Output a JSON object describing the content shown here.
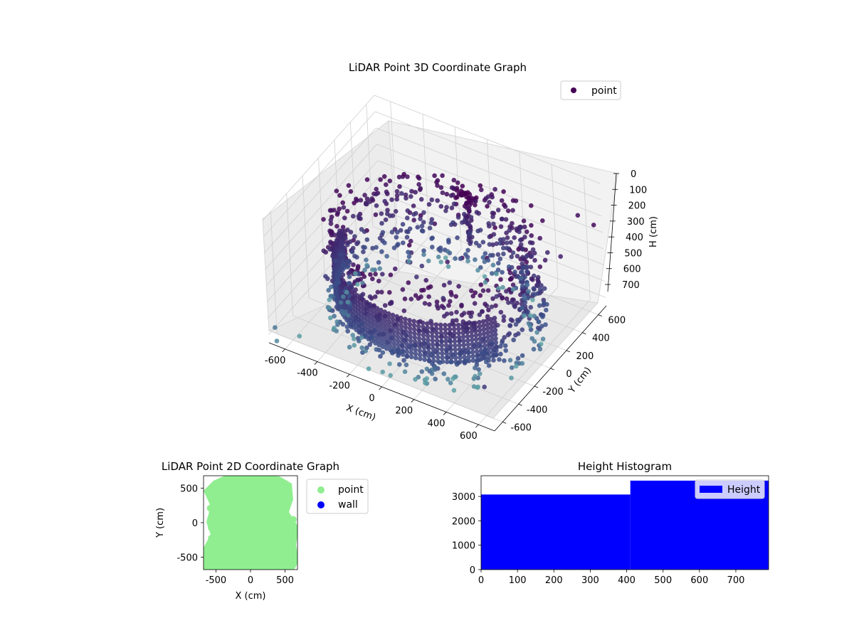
{
  "figure": {
    "background": "#ffffff"
  },
  "chart_data": [
    {
      "type": "scatter",
      "title": "LiDAR Point 3D Coordinate Graph",
      "xlabel": "X (cm)",
      "ylabel": "Y (cm)",
      "zlabel": "H (cm)",
      "xlim": [
        -700,
        700
      ],
      "ylim": [
        -700,
        700
      ],
      "zlim": [
        750,
        0
      ],
      "x_ticks": [
        -600,
        -400,
        -200,
        0,
        200,
        400,
        600
      ],
      "y_ticks": [
        -600,
        -400,
        -200,
        0,
        200,
        400,
        600
      ],
      "z_ticks": [
        0,
        100,
        200,
        300,
        400,
        500,
        600,
        700
      ],
      "grid": true,
      "legend": {
        "position": "top-right",
        "entries": [
          {
            "label": "point",
            "color": "#440154"
          }
        ]
      },
      "colormap": "viridis",
      "colors": {
        "low": "#440154",
        "mid": "#3b528b",
        "high": "#5ea4a6"
      },
      "description_of_data": "dense circular ring of wall points (radius ~550 cm) spanning heights ~150-750 cm, plus a vertical column near x≈0,y≈300 and scattered ceiling points"
    },
    {
      "type": "scatter",
      "title": "LiDAR Point 2D Coordinate Graph",
      "xlabel": "X (cm)",
      "ylabel": "Y (cm)",
      "xlim": [
        -680,
        680
      ],
      "ylim": [
        -680,
        680
      ],
      "x_ticks": [
        -500,
        0,
        500
      ],
      "y_ticks": [
        -500,
        0,
        500
      ],
      "legend": {
        "position": "right-outside",
        "entries": [
          {
            "label": "point",
            "color": "#90ee90"
          },
          {
            "label": "wall",
            "color": "#0000ff"
          }
        ]
      }
    },
    {
      "type": "bar",
      "title": "Height Histogram",
      "xlabel": "",
      "ylabel": "",
      "bins": [
        {
          "from": 0,
          "to": 410,
          "count": 3080
        },
        {
          "from": 410,
          "to": 790,
          "count": 3650
        }
      ],
      "xlim": [
        0,
        790
      ],
      "ylim": [
        0,
        3850
      ],
      "x_ticks": [
        0,
        100,
        200,
        300,
        400,
        500,
        600,
        700
      ],
      "y_ticks": [
        0,
        1000,
        2000,
        3000
      ],
      "legend": {
        "position": "top-right",
        "entries": [
          {
            "label": "Height",
            "color": "#0000ff"
          }
        ]
      }
    }
  ]
}
